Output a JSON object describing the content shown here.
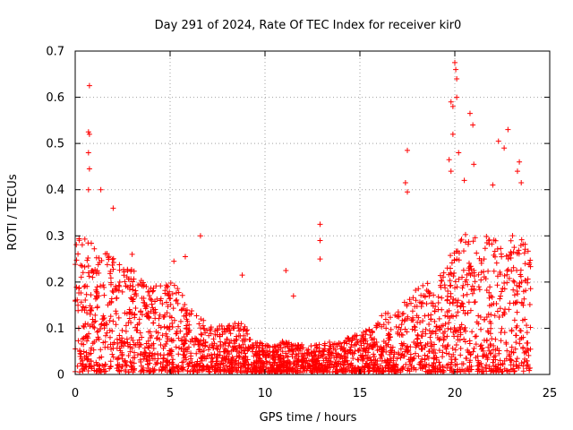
{
  "chart_data": {
    "type": "scatter",
    "title": "Day 291 of 2024, Rate Of TEC Index for receiver kir0",
    "xlabel": "GPS time / hours",
    "ylabel": "ROTI / TECUs",
    "xlim": [
      0,
      25
    ],
    "ylim": [
      0,
      0.7
    ],
    "xticks": [
      0,
      5,
      10,
      15,
      20,
      25
    ],
    "yticks": [
      0,
      0.1,
      0.2,
      0.3,
      0.4,
      0.5,
      0.6,
      0.7
    ],
    "xtick_labels": [
      "0",
      "5",
      "10",
      "15",
      "20",
      "25"
    ],
    "ytick_labels": [
      "0",
      "0.1",
      "0.2",
      "0.3",
      "0.4",
      "0.5",
      "0.6",
      "0.7"
    ],
    "grid": true,
    "marker": "+",
    "color": "#ff0000",
    "envelope": {
      "description": "approximate upper envelope of the dense ROTI cloud (hours, TECU)",
      "x": [
        0,
        0.5,
        1,
        1.5,
        2,
        2.5,
        3,
        3.5,
        4,
        4.5,
        5,
        5.5,
        6,
        6.5,
        7,
        7.5,
        8,
        8.5,
        9,
        9.5,
        10,
        10.5,
        11,
        11.5,
        12,
        12.5,
        13,
        13.5,
        14,
        14.5,
        15,
        15.5,
        16,
        16.5,
        17,
        17.5,
        18,
        18.5,
        19,
        19.5,
        20,
        20.5,
        21,
        21.5,
        22,
        22.5,
        23,
        23.5,
        24
      ],
      "y": [
        0.33,
        0.3,
        0.28,
        0.27,
        0.25,
        0.24,
        0.23,
        0.2,
        0.19,
        0.19,
        0.2,
        0.18,
        0.14,
        0.12,
        0.11,
        0.1,
        0.1,
        0.11,
        0.1,
        0.07,
        0.06,
        0.06,
        0.07,
        0.06,
        0.06,
        0.06,
        0.06,
        0.07,
        0.07,
        0.08,
        0.09,
        0.1,
        0.12,
        0.13,
        0.14,
        0.16,
        0.18,
        0.2,
        0.2,
        0.24,
        0.27,
        0.3,
        0.3,
        0.3,
        0.29,
        0.28,
        0.3,
        0.3,
        0.25
      ]
    },
    "highlights": [
      {
        "x": 0.75,
        "y": 0.625
      },
      {
        "x": 0.7,
        "y": 0.525
      },
      {
        "x": 0.75,
        "y": 0.52
      },
      {
        "x": 0.7,
        "y": 0.48
      },
      {
        "x": 0.75,
        "y": 0.445
      },
      {
        "x": 0.7,
        "y": 0.4
      },
      {
        "x": 1.35,
        "y": 0.4
      },
      {
        "x": 6.6,
        "y": 0.3
      },
      {
        "x": 8.8,
        "y": 0.215
      },
      {
        "x": 11.1,
        "y": 0.225
      },
      {
        "x": 12.9,
        "y": 0.325
      },
      {
        "x": 12.9,
        "y": 0.29
      },
      {
        "x": 12.9,
        "y": 0.25
      },
      {
        "x": 17.5,
        "y": 0.485
      },
      {
        "x": 17.4,
        "y": 0.415
      },
      {
        "x": 17.5,
        "y": 0.395
      },
      {
        "x": 20.0,
        "y": 0.675
      },
      {
        "x": 20.05,
        "y": 0.66
      },
      {
        "x": 20.1,
        "y": 0.64
      },
      {
        "x": 20.1,
        "y": 0.6
      },
      {
        "x": 19.8,
        "y": 0.59
      },
      {
        "x": 19.9,
        "y": 0.58
      },
      {
        "x": 20.8,
        "y": 0.565
      },
      {
        "x": 20.95,
        "y": 0.54
      },
      {
        "x": 19.9,
        "y": 0.52
      },
      {
        "x": 20.2,
        "y": 0.48
      },
      {
        "x": 22.3,
        "y": 0.505
      },
      {
        "x": 22.6,
        "y": 0.49
      },
      {
        "x": 22.8,
        "y": 0.53
      },
      {
        "x": 23.4,
        "y": 0.46
      },
      {
        "x": 23.3,
        "y": 0.44
      },
      {
        "x": 21.0,
        "y": 0.455
      },
      {
        "x": 19.7,
        "y": 0.465
      },
      {
        "x": 19.8,
        "y": 0.44
      },
      {
        "x": 20.5,
        "y": 0.42
      },
      {
        "x": 22.0,
        "y": 0.41
      },
      {
        "x": 23.5,
        "y": 0.415
      },
      {
        "x": 2.0,
        "y": 0.36
      },
      {
        "x": 3.0,
        "y": 0.26
      },
      {
        "x": 5.2,
        "y": 0.245
      },
      {
        "x": 5.8,
        "y": 0.255
      },
      {
        "x": 11.5,
        "y": 0.17
      }
    ]
  }
}
